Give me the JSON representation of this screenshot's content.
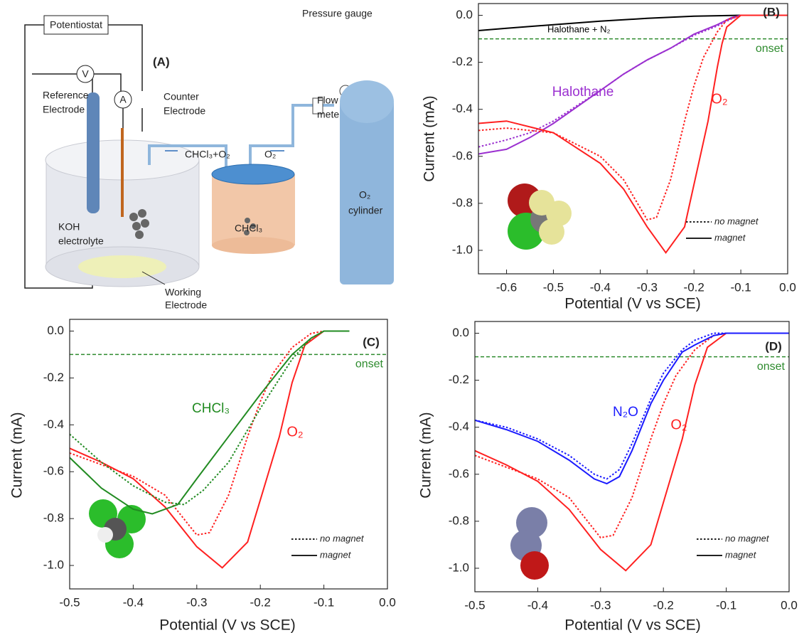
{
  "diagram": {
    "panel": "(A)",
    "potentiostat": "Potentiostat",
    "voltmeter": "V",
    "ammeter": "A",
    "reference_electrode": [
      "Reference",
      "Electrode"
    ],
    "counter_electrode": [
      "Counter",
      "Electrode"
    ],
    "flow_label": "CHCl₃+O₂",
    "gas_label": "O₂",
    "pressure_gauge": "Pressure gauge",
    "flow_meter": [
      "Flow",
      "meter"
    ],
    "cylinder": [
      "O₂",
      "cylinder"
    ],
    "electrolyte": [
      "KOH",
      "electrolyte"
    ],
    "beaker": "CHCl₃",
    "working_electrode": [
      "Working",
      "Electrode"
    ]
  },
  "chart_data": [
    {
      "type": "line",
      "panel": "(B)",
      "xlabel": "Potential (V vs SCE)",
      "ylabel": "Current (mA)",
      "xlim": [
        -0.66,
        0
      ],
      "ylim": [
        -1.1,
        0.05
      ],
      "xticks": [
        -0.6,
        -0.5,
        -0.4,
        -0.3,
        -0.2,
        -0.1,
        {
          "value": 0,
          "label": "0.0"
        }
      ],
      "yticks": [
        {
          "value": 0,
          "label": "0.0"
        },
        -0.2,
        -0.4,
        -0.6,
        -0.8,
        {
          "value": -1,
          "label": "-1.0"
        }
      ],
      "onset": {
        "value": -0.1,
        "label": "onset",
        "color": "#2e8b2e"
      },
      "annotations": [
        {
          "text": "Halothane + N₂",
          "color": "#000000"
        },
        {
          "text": "Halothane",
          "color": "#9b30d0"
        },
        {
          "text": "O₂",
          "color": "#ff2020"
        }
      ],
      "legend": [
        {
          "label": "no magnet",
          "style": "dotted"
        },
        {
          "label": "magnet",
          "style": "solid"
        }
      ],
      "series": [
        {
          "color": "#000000",
          "style": "solid",
          "x": [
            -0.66,
            -0.6,
            -0.5,
            -0.4,
            -0.3,
            -0.2,
            -0.1,
            0
          ],
          "values": [
            -0.065,
            -0.055,
            -0.04,
            -0.025,
            -0.013,
            -0.004,
            0,
            0
          ]
        },
        {
          "color": "#9b30d0",
          "style": "dotted",
          "x": [
            -0.66,
            -0.6,
            -0.55,
            -0.5,
            -0.45,
            -0.4,
            -0.35,
            -0.3,
            -0.25,
            -0.2,
            -0.15,
            -0.12,
            -0.1,
            0
          ],
          "values": [
            -0.56,
            -0.53,
            -0.5,
            -0.45,
            -0.385,
            -0.32,
            -0.25,
            -0.19,
            -0.14,
            -0.085,
            -0.045,
            -0.015,
            0,
            0
          ]
        },
        {
          "color": "#9b30d0",
          "style": "solid",
          "x": [
            -0.66,
            -0.6,
            -0.55,
            -0.5,
            -0.45,
            -0.4,
            -0.35,
            -0.3,
            -0.25,
            -0.2,
            -0.15,
            -0.12,
            -0.1,
            0
          ],
          "values": [
            -0.59,
            -0.57,
            -0.52,
            -0.46,
            -0.39,
            -0.32,
            -0.25,
            -0.19,
            -0.14,
            -0.08,
            -0.04,
            -0.01,
            0,
            0
          ]
        },
        {
          "color": "#ff2020",
          "style": "dotted",
          "x": [
            -0.66,
            -0.6,
            -0.5,
            -0.4,
            -0.35,
            -0.3,
            -0.28,
            -0.25,
            -0.22,
            -0.2,
            -0.18,
            -0.15,
            -0.13,
            -0.1,
            0
          ],
          "values": [
            -0.49,
            -0.48,
            -0.5,
            -0.6,
            -0.7,
            -0.87,
            -0.86,
            -0.7,
            -0.45,
            -0.3,
            -0.18,
            -0.07,
            -0.02,
            0,
            0
          ]
        },
        {
          "color": "#ff2020",
          "style": "solid",
          "x": [
            -0.66,
            -0.6,
            -0.5,
            -0.4,
            -0.35,
            -0.3,
            -0.26,
            -0.22,
            -0.2,
            -0.17,
            -0.15,
            -0.14,
            -0.13,
            -0.1,
            0
          ],
          "values": [
            -0.46,
            -0.45,
            -0.5,
            -0.63,
            -0.74,
            -0.9,
            -1.01,
            -0.9,
            -0.72,
            -0.45,
            -0.22,
            -0.12,
            -0.05,
            0,
            0
          ]
        }
      ]
    },
    {
      "type": "line",
      "panel": "(C)",
      "xlabel": "Potential (V vs SCE)",
      "ylabel": "Current (mA)",
      "xlim": [
        -0.5,
        0
      ],
      "ylim": [
        -1.1,
        0.05
      ],
      "xticks": [
        -0.5,
        -0.4,
        -0.3,
        -0.2,
        -0.1,
        {
          "value": 0,
          "label": "0.0"
        }
      ],
      "yticks": [
        {
          "value": 0,
          "label": "0.0"
        },
        -0.2,
        -0.4,
        -0.6,
        -0.8,
        {
          "value": -1,
          "label": "-1.0"
        }
      ],
      "onset": {
        "value": -0.1,
        "label": "onset",
        "color": "#2e8b2e"
      },
      "annotations": [
        {
          "text": "CHCl₃",
          "color": "#228b22"
        },
        {
          "text": "O₂",
          "color": "#ff2020"
        }
      ],
      "legend": [
        {
          "label": "no magnet",
          "style": "dotted"
        },
        {
          "label": "magnet",
          "style": "solid"
        }
      ],
      "series": [
        {
          "color": "#ff2020",
          "style": "dotted",
          "x": [
            -0.5,
            -0.45,
            -0.4,
            -0.35,
            -0.3,
            -0.28,
            -0.25,
            -0.22,
            -0.2,
            -0.18,
            -0.15,
            -0.12,
            -0.1,
            -0.06
          ],
          "values": [
            -0.52,
            -0.57,
            -0.62,
            -0.7,
            -0.87,
            -0.86,
            -0.7,
            -0.45,
            -0.3,
            -0.18,
            -0.07,
            -0.01,
            0,
            0
          ]
        },
        {
          "color": "#ff2020",
          "style": "solid",
          "x": [
            -0.5,
            -0.45,
            -0.4,
            -0.35,
            -0.3,
            -0.26,
            -0.22,
            -0.2,
            -0.17,
            -0.15,
            -0.13,
            -0.1,
            -0.06
          ],
          "values": [
            -0.5,
            -0.56,
            -0.63,
            -0.75,
            -0.92,
            -1.01,
            -0.9,
            -0.72,
            -0.45,
            -0.22,
            -0.06,
            0,
            0
          ]
        },
        {
          "color": "#228b22",
          "style": "dotted",
          "x": [
            -0.5,
            -0.45,
            -0.4,
            -0.35,
            -0.32,
            -0.29,
            -0.25,
            -0.2,
            -0.15,
            -0.12,
            -0.1,
            -0.06
          ],
          "values": [
            -0.44,
            -0.56,
            -0.66,
            -0.73,
            -0.74,
            -0.68,
            -0.56,
            -0.33,
            -0.12,
            -0.03,
            0,
            0
          ]
        },
        {
          "color": "#228b22",
          "style": "solid",
          "x": [
            -0.5,
            -0.45,
            -0.4,
            -0.37,
            -0.33,
            -0.3,
            -0.25,
            -0.2,
            -0.15,
            -0.12,
            -0.1,
            -0.06
          ],
          "values": [
            -0.54,
            -0.67,
            -0.76,
            -0.78,
            -0.74,
            -0.63,
            -0.45,
            -0.27,
            -0.1,
            -0.03,
            0,
            0
          ]
        }
      ]
    },
    {
      "type": "line",
      "panel": "(D)",
      "xlabel": "Potential (V vs SCE)",
      "ylabel": "Current (mA)",
      "xlim": [
        -0.5,
        0
      ],
      "ylim": [
        -1.1,
        0.05
      ],
      "xticks": [
        -0.5,
        -0.4,
        -0.3,
        -0.2,
        -0.1,
        {
          "value": 0,
          "label": "0.0"
        }
      ],
      "yticks": [
        {
          "value": 0,
          "label": "0.0"
        },
        -0.2,
        -0.4,
        -0.6,
        -0.8,
        {
          "value": -1,
          "label": "-1.0"
        }
      ],
      "onset": {
        "value": -0.1,
        "label": "onset",
        "color": "#2e8b2e"
      },
      "annotations": [
        {
          "text": "N₂O",
          "color": "#1a1aff"
        },
        {
          "text": "O₂",
          "color": "#ff2020"
        }
      ],
      "legend": [
        {
          "label": "no magnet",
          "style": "dotted"
        },
        {
          "label": "magnet",
          "style": "solid"
        }
      ],
      "series": [
        {
          "color": "#ff2020",
          "style": "dotted",
          "x": [
            -0.5,
            -0.45,
            -0.4,
            -0.35,
            -0.3,
            -0.28,
            -0.25,
            -0.22,
            -0.2,
            -0.18,
            -0.15,
            -0.12,
            -0.1,
            0
          ],
          "values": [
            -0.52,
            -0.57,
            -0.62,
            -0.7,
            -0.87,
            -0.86,
            -0.7,
            -0.45,
            -0.3,
            -0.18,
            -0.07,
            -0.01,
            0,
            0
          ]
        },
        {
          "color": "#ff2020",
          "style": "solid",
          "x": [
            -0.5,
            -0.45,
            -0.4,
            -0.35,
            -0.3,
            -0.26,
            -0.22,
            -0.2,
            -0.17,
            -0.15,
            -0.13,
            -0.1,
            0
          ],
          "values": [
            -0.5,
            -0.56,
            -0.63,
            -0.75,
            -0.92,
            -1.01,
            -0.9,
            -0.72,
            -0.45,
            -0.22,
            -0.06,
            0,
            0
          ]
        },
        {
          "color": "#1a1aff",
          "style": "dotted",
          "x": [
            -0.5,
            -0.45,
            -0.4,
            -0.35,
            -0.31,
            -0.29,
            -0.27,
            -0.25,
            -0.22,
            -0.2,
            -0.17,
            -0.15,
            -0.12,
            -0.1,
            0
          ],
          "values": [
            -0.37,
            -0.4,
            -0.45,
            -0.52,
            -0.6,
            -0.62,
            -0.58,
            -0.47,
            -0.28,
            -0.17,
            -0.07,
            -0.03,
            0,
            0,
            0
          ]
        },
        {
          "color": "#1a1aff",
          "style": "solid",
          "x": [
            -0.5,
            -0.45,
            -0.4,
            -0.35,
            -0.31,
            -0.29,
            -0.27,
            -0.25,
            -0.22,
            -0.2,
            -0.17,
            -0.15,
            -0.12,
            -0.1,
            0
          ],
          "values": [
            -0.37,
            -0.41,
            -0.46,
            -0.54,
            -0.62,
            -0.64,
            -0.61,
            -0.5,
            -0.3,
            -0.2,
            -0.08,
            -0.05,
            -0.01,
            0,
            0
          ]
        }
      ]
    }
  ]
}
